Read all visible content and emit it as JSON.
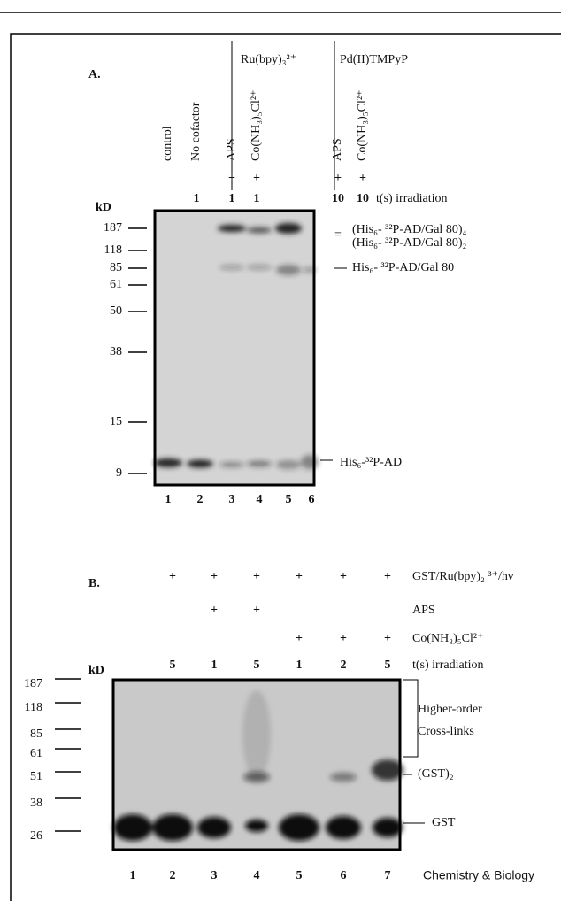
{
  "panel_a": {
    "label": "A.",
    "cofactors": [
      "Ru(bpy)₃²⁺",
      "Pd(II)TMPyP"
    ],
    "lanes": [
      "control",
      "No cofactor",
      "APS",
      "Co(NH₃)₅Cl²⁺",
      "APS",
      "Co(NH₃)₅Cl²⁺"
    ],
    "plus": [
      null,
      null,
      "+",
      "+",
      "+",
      "+"
    ],
    "times": [
      null,
      "1",
      "1",
      "1",
      "10",
      "10"
    ],
    "time_label": "t(s) irradiation",
    "unit": "kD",
    "markers": [
      "187",
      "118",
      "85",
      "61",
      "50",
      "38",
      "15",
      "9"
    ],
    "band_labels": [
      "=",
      "(His₆- ³²P-AD/Gal 80)₄",
      "(His₆- ³²P-AD/Gal 80)₂",
      "His₆- ³²P-AD/Gal 80",
      "His₆-³²P-AD"
    ],
    "lane_numbers": [
      "1",
      "2",
      "3",
      "4",
      "5",
      "6"
    ]
  },
  "panel_b": {
    "label": "B.",
    "rows": [
      {
        "label": "GST/Ru(bpy)₂ ³⁺/hν",
        "marks": [
          "+",
          "+",
          "+",
          "+",
          "+",
          "+"
        ]
      },
      {
        "label": "APS",
        "marks": [
          null,
          "+",
          "+",
          null,
          null,
          null
        ]
      },
      {
        "label": "Co(NH₃)₅Cl²⁺",
        "marks": [
          null,
          null,
          null,
          "+",
          "+",
          "+"
        ]
      },
      {
        "label": "t(s) irradiation",
        "marks": [
          "5",
          "1",
          "5",
          "1",
          "2",
          "5"
        ]
      }
    ],
    "unit": "kD",
    "markers": [
      "187",
      "118",
      "85",
      "61",
      "51",
      "38",
      "26"
    ],
    "band_labels": [
      "Higher-order",
      "Cross-links",
      "(GST)₂",
      "GST"
    ],
    "lane_numbers": [
      "1",
      "2",
      "3",
      "4",
      "5",
      "6",
      "7"
    ],
    "credit": "Chemistry & Biology"
  }
}
